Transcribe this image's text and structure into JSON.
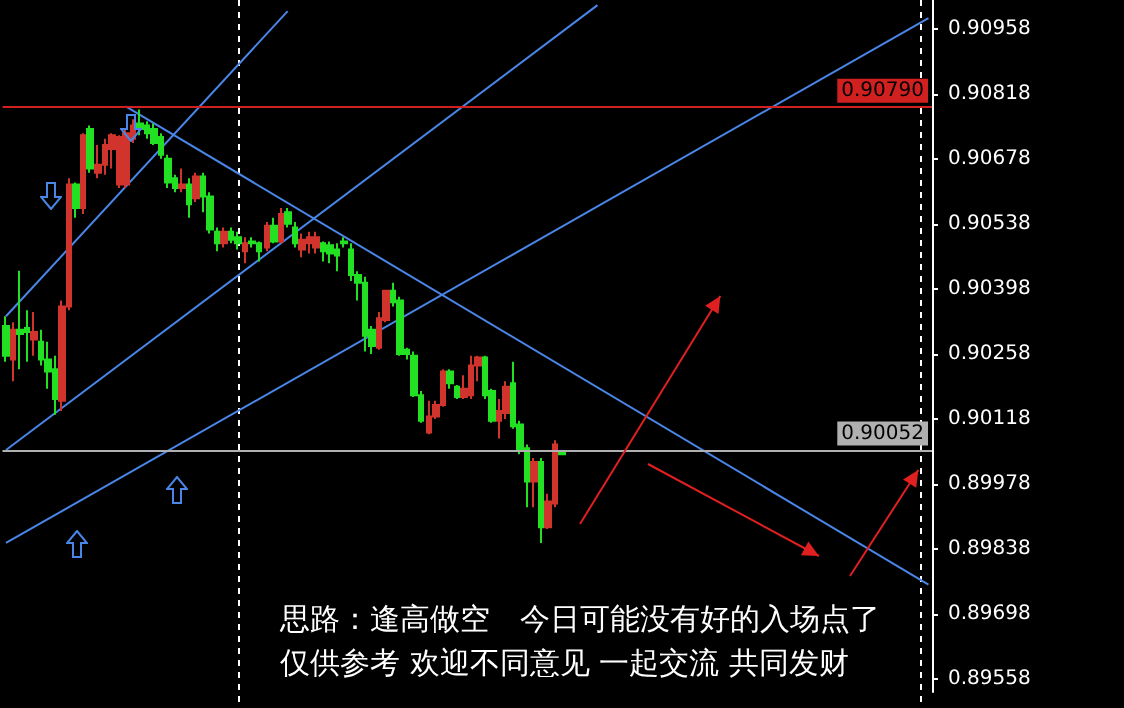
{
  "chart_data": {
    "type": "candlestick",
    "categories": [
      null,
      null,
      null,
      null,
      null,
      null,
      null,
      null,
      null,
      null,
      null,
      null,
      null,
      null,
      null,
      null,
      null,
      null,
      null,
      null,
      null,
      null,
      null,
      null,
      null,
      null,
      null,
      null,
      null,
      null,
      null,
      null,
      null,
      null,
      null,
      null,
      null,
      null,
      null,
      null,
      null,
      null,
      null,
      null,
      null,
      null,
      null,
      null,
      null,
      null,
      null,
      null,
      null,
      null,
      null,
      null,
      null,
      null,
      null,
      null,
      null,
      null,
      null,
      null,
      null,
      null,
      null,
      null,
      null,
      null,
      null,
      null,
      null,
      null,
      null,
      null,
      null,
      null,
      null,
      null,
      null,
      null,
      null,
      null,
      null,
      null,
      null,
      null,
      null,
      null,
      null,
      null,
      null,
      null,
      null,
      null,
      null,
      null,
      null,
      null,
      null,
      null,
      null,
      null,
      null,
      null,
      null,
      null,
      null,
      null,
      null,
      null,
      null,
      null,
      null,
      null,
      null,
      null,
      null,
      null,
      null,
      null,
      null,
      null,
      null,
      null,
      null,
      null,
      null,
      null,
      null,
      null
    ],
    "ohlc": [
      [
        0.90318,
        0.90339,
        0.90241,
        0.90254
      ],
      [
        0.90246,
        0.90326,
        0.90199,
        0.9031
      ],
      [
        0.9031,
        0.90437,
        0.90225,
        0.90301
      ],
      [
        0.90314,
        0.90352,
        0.90241,
        0.90305
      ],
      [
        0.90289,
        0.90348,
        0.90254,
        0.90305
      ],
      [
        0.90284,
        0.9031,
        0.90233,
        0.90246
      ],
      [
        0.90246,
        0.90284,
        0.90183,
        0.9022
      ],
      [
        0.90225,
        0.90254,
        0.90127,
        0.90161
      ],
      [
        0.90157,
        0.90373,
        0.90135,
        0.9036
      ],
      [
        0.9036,
        0.90636,
        0.90352,
        0.90623
      ],
      [
        0.90623,
        0.90627,
        0.90551,
        0.90572
      ],
      [
        0.90572,
        0.90733,
        0.90559,
        0.90729
      ],
      [
        0.90742,
        0.9075,
        0.90648,
        0.90657
      ],
      [
        0.90648,
        0.90708,
        0.90636,
        0.90665
      ],
      [
        0.90665,
        0.90721,
        0.90644,
        0.90708
      ],
      [
        0.90699,
        0.90733,
        0.90657,
        0.90729
      ],
      [
        0.90623,
        0.90729,
        0.90615,
        0.90725
      ],
      [
        0.90623,
        0.90742,
        0.90615,
        0.90733
      ],
      [
        0.90721,
        0.90763,
        0.90712,
        0.9075
      ],
      [
        0.90754,
        0.90784,
        0.90729,
        0.90742
      ],
      [
        0.9075,
        0.90759,
        0.90721,
        0.90733
      ],
      [
        0.90742,
        0.90754,
        0.90708,
        0.90712
      ],
      [
        0.90725,
        0.90733,
        0.90678,
        0.90687
      ],
      [
        0.90678,
        0.90687,
        0.90615,
        0.90627
      ],
      [
        0.90636,
        0.90644,
        0.90606,
        0.90615
      ],
      [
        0.90615,
        0.90657,
        0.90606,
        0.90623
      ],
      [
        0.90623,
        0.90636,
        0.90551,
        0.9058
      ],
      [
        0.90593,
        0.90648,
        0.90585,
        0.9064
      ],
      [
        0.9064,
        0.90648,
        0.90563,
        0.90597
      ],
      [
        0.90597,
        0.90606,
        0.90517,
        0.90526
      ],
      [
        0.90521,
        0.9053,
        0.90479,
        0.90496
      ],
      [
        0.90496,
        0.9053,
        0.90487,
        0.90521
      ],
      [
        0.90521,
        0.9053,
        0.90496,
        0.90504
      ],
      [
        0.90509,
        0.90521,
        0.90483,
        0.90496
      ],
      [
        0.90479,
        0.90509,
        0.90453,
        0.90496
      ],
      [
        0.905,
        0.90509,
        0.90487,
        0.90496
      ],
      [
        0.90496,
        0.905,
        0.90457,
        0.90479
      ],
      [
        0.90487,
        0.90542,
        0.90479,
        0.90534
      ],
      [
        0.90534,
        0.90551,
        0.90496,
        0.905
      ],
      [
        0.905,
        0.90572,
        0.90496,
        0.90559
      ],
      [
        0.90563,
        0.90572,
        0.9053,
        0.90538
      ],
      [
        0.9053,
        0.90542,
        0.90487,
        0.90496
      ],
      [
        0.90483,
        0.90517,
        0.90466,
        0.90504
      ],
      [
        0.90496,
        0.90521,
        0.90474,
        0.90509
      ],
      [
        0.90487,
        0.90521,
        0.90474,
        0.90509
      ],
      [
        0.90496,
        0.905,
        0.90457,
        0.90479
      ],
      [
        0.90492,
        0.905,
        0.90453,
        0.90474
      ],
      [
        0.90483,
        0.90496,
        0.90436,
        0.9047
      ],
      [
        0.905,
        0.90509,
        0.90487,
        0.90496
      ],
      [
        0.90483,
        0.90496,
        0.90415,
        0.90428
      ],
      [
        0.90428,
        0.90436,
        0.90373,
        0.90411
      ],
      [
        0.90411,
        0.90424,
        0.90263,
        0.90297
      ],
      [
        0.9031,
        0.90318,
        0.90258,
        0.90275
      ],
      [
        0.90271,
        0.90348,
        0.90267,
        0.90335
      ],
      [
        0.90331,
        0.90394,
        0.90326,
        0.90394
      ],
      [
        0.90394,
        0.90411,
        0.9036,
        0.90369
      ],
      [
        0.90373,
        0.90381,
        0.90254,
        0.90258
      ],
      [
        0.90267,
        0.90271,
        0.90246,
        0.90258
      ],
      [
        0.90254,
        0.90263,
        0.90165,
        0.90169
      ],
      [
        0.90169,
        0.90178,
        0.9011,
        0.90114
      ],
      [
        0.90089,
        0.90157,
        0.90085,
        0.90123
      ],
      [
        0.90123,
        0.90157,
        0.90118,
        0.90148
      ],
      [
        0.90148,
        0.90225,
        0.90144,
        0.9022
      ],
      [
        0.9022,
        0.90225,
        0.90183,
        0.90195
      ],
      [
        0.90187,
        0.90191,
        0.90161,
        0.90165
      ],
      [
        0.90165,
        0.90212,
        0.90161,
        0.90183
      ],
      [
        0.90169,
        0.90254,
        0.90161,
        0.90233
      ],
      [
        0.90233,
        0.90254,
        0.90199,
        0.9025
      ],
      [
        0.9025,
        0.90254,
        0.90161,
        0.90169
      ],
      [
        0.90178,
        0.90183,
        0.9011,
        0.90114
      ],
      [
        0.90114,
        0.90161,
        0.90076,
        0.90135
      ],
      [
        0.90131,
        0.90199,
        0.90118,
        0.90187
      ],
      [
        0.90195,
        0.90241,
        0.90097,
        0.90102
      ],
      [
        0.90106,
        0.90114,
        0.90042,
        0.9005
      ],
      [
        0.90055,
        0.90063,
        0.89928,
        0.89983
      ],
      [
        0.89983,
        0.90034,
        0.89928,
        0.90025
      ],
      [
        0.90025,
        0.90034,
        0.89851,
        0.89885
      ],
      [
        0.89885,
        0.89957,
        0.89881,
        0.8994
      ],
      [
        0.89936,
        0.90072,
        0.89928,
        0.90063
      ],
      [
        0.90046,
        0.9005,
        0.90042,
        0.90042
      ],
      null,
      null,
      null,
      null,
      null,
      null,
      null,
      null,
      null,
      null,
      null,
      null,
      null,
      null,
      null,
      null,
      null,
      null,
      null,
      null,
      null,
      null,
      null,
      null,
      null,
      null,
      null,
      null,
      null,
      null,
      null,
      null,
      null,
      null,
      null,
      null,
      null,
      null,
      null,
      null,
      null,
      null,
      null,
      null,
      null,
      null,
      null,
      null,
      null,
      null,
      null,
      null
    ],
    "series": [
      {
        "type": "line",
        "color": "#4a86e8",
        "values": [
          0.90339,
          null,
          null,
          null,
          null,
          null,
          null,
          null,
          null,
          null,
          null,
          null,
          null,
          null,
          null,
          null,
          null,
          null,
          null,
          null,
          null,
          null,
          null,
          null,
          null,
          null,
          null,
          null,
          null,
          null,
          null,
          null,
          null,
          null,
          null,
          null,
          null,
          null,
          null,
          null,
          0.90996,
          null,
          null,
          null,
          null,
          null,
          null,
          null,
          null,
          null,
          null,
          null,
          null,
          null,
          null,
          null,
          null,
          null,
          null,
          null,
          null,
          null,
          null,
          null,
          null,
          null,
          null,
          null,
          null,
          null,
          null,
          null,
          null,
          null,
          null,
          null,
          null,
          null,
          null,
          null,
          null,
          null,
          null,
          null,
          null,
          null,
          null,
          null,
          null,
          null,
          null,
          null,
          null,
          null,
          null,
          null,
          null,
          null,
          null,
          null,
          null,
          null,
          null,
          null,
          null,
          null,
          null,
          null,
          null,
          null,
          null,
          null,
          null,
          null,
          null,
          null,
          null,
          null,
          null,
          null,
          null,
          null,
          null,
          null,
          null,
          null,
          null,
          null,
          null,
          null,
          null,
          null
        ]
      },
      {
        "type": "line",
        "color": "#4a86e8",
        "values": [
          0.90051,
          null,
          null,
          null,
          null,
          null,
          null,
          null,
          null,
          null,
          null,
          null,
          null,
          null,
          null,
          null,
          null,
          null,
          null,
          null,
          null,
          null,
          null,
          null,
          null,
          null,
          null,
          null,
          null,
          null,
          null,
          null,
          null,
          null,
          null,
          null,
          null,
          null,
          null,
          null,
          null,
          null,
          null,
          null,
          null,
          null,
          null,
          null,
          null,
          null,
          null,
          null,
          null,
          null,
          null,
          null,
          null,
          null,
          null,
          null,
          null,
          null,
          null,
          null,
          null,
          null,
          null,
          null,
          null,
          null,
          null,
          null,
          null,
          null,
          null,
          null,
          null,
          null,
          null,
          null,
          null,
          null,
          null,
          null,
          0.91009,
          null,
          null,
          null,
          null,
          null,
          null,
          null,
          null,
          null,
          null,
          null,
          null,
          null,
          null,
          null,
          null,
          null,
          null,
          null,
          null,
          null,
          null,
          null,
          null,
          null,
          null,
          null,
          null,
          null,
          null,
          null,
          null,
          null,
          null,
          null,
          null,
          null,
          null,
          null,
          null,
          null,
          null,
          null,
          null,
          null,
          null,
          null
        ]
      },
      {
        "type": "line",
        "color": "#4a86e8",
        "values": [
          0.89851,
          null,
          null,
          null,
          null,
          null,
          null,
          null,
          null,
          null,
          null,
          null,
          null,
          null,
          null,
          null,
          null,
          null,
          null,
          null,
          null,
          null,
          null,
          null,
          null,
          null,
          null,
          null,
          null,
          null,
          null,
          null,
          null,
          null,
          null,
          null,
          null,
          null,
          null,
          null,
          null,
          null,
          null,
          null,
          null,
          null,
          null,
          null,
          null,
          null,
          null,
          null,
          null,
          null,
          null,
          null,
          null,
          null,
          null,
          null,
          null,
          null,
          null,
          null,
          null,
          null,
          null,
          null,
          null,
          null,
          null,
          null,
          null,
          null,
          null,
          null,
          null,
          null,
          null,
          null,
          null,
          null,
          null,
          null,
          null,
          null,
          null,
          null,
          null,
          null,
          null,
          null,
          null,
          null,
          null,
          null,
          null,
          null,
          null,
          null,
          null,
          null,
          null,
          null,
          null,
          null,
          null,
          null,
          null,
          null,
          null,
          null,
          null,
          null,
          null,
          null,
          null,
          null,
          null,
          null,
          null,
          null,
          null,
          null,
          null,
          null,
          null,
          null,
          null,
          null,
          null,
          0.90981
        ]
      },
      {
        "type": "line",
        "color": "#4a86e8",
        "values": [
          null,
          null,
          null,
          null,
          null,
          null,
          null,
          null,
          null,
          null,
          null,
          null,
          null,
          null,
          null,
          null,
          null,
          0.90791,
          null,
          null,
          null,
          null,
          null,
          null,
          null,
          null,
          null,
          null,
          null,
          null,
          null,
          null,
          null,
          null,
          null,
          null,
          null,
          null,
          null,
          null,
          null,
          null,
          null,
          null,
          null,
          null,
          null,
          null,
          null,
          null,
          null,
          null,
          null,
          null,
          null,
          null,
          null,
          null,
          null,
          null,
          null,
          null,
          null,
          null,
          null,
          null,
          null,
          null,
          null,
          null,
          null,
          null,
          null,
          null,
          null,
          null,
          null,
          null,
          null,
          null,
          null,
          null,
          null,
          null,
          null,
          null,
          null,
          null,
          null,
          null,
          null,
          null,
          null,
          null,
          null,
          null,
          null,
          null,
          null,
          null,
          null,
          null,
          null,
          null,
          null,
          null,
          null,
          null,
          null,
          null,
          null,
          null,
          null,
          null,
          null,
          null,
          null,
          null,
          null,
          null,
          null,
          null,
          null,
          null,
          null,
          null,
          null,
          null,
          null,
          null,
          null,
          0.89761
        ]
      }
    ],
    "ylim": [
      0.8953,
      0.9102
    ],
    "yticks": [
      0.89558,
      0.89698,
      0.89838,
      0.89978,
      0.90118,
      0.90258,
      0.90398,
      0.90538,
      0.90678,
      0.90818,
      0.90958
    ],
    "ref_lines": [
      {
        "axis": "y",
        "value": 0.9079,
        "label": "0.90790",
        "color": "#d02020"
      },
      {
        "axis": "y",
        "value": 0.90052,
        "label": "0.90052",
        "color": "#b0b0b0"
      }
    ],
    "annotations": [
      "思路：逢高做空　今日可能没有好的入场点了",
      "仅供参考 欢迎不同意见 一起交流 共同发财"
    ]
  }
}
